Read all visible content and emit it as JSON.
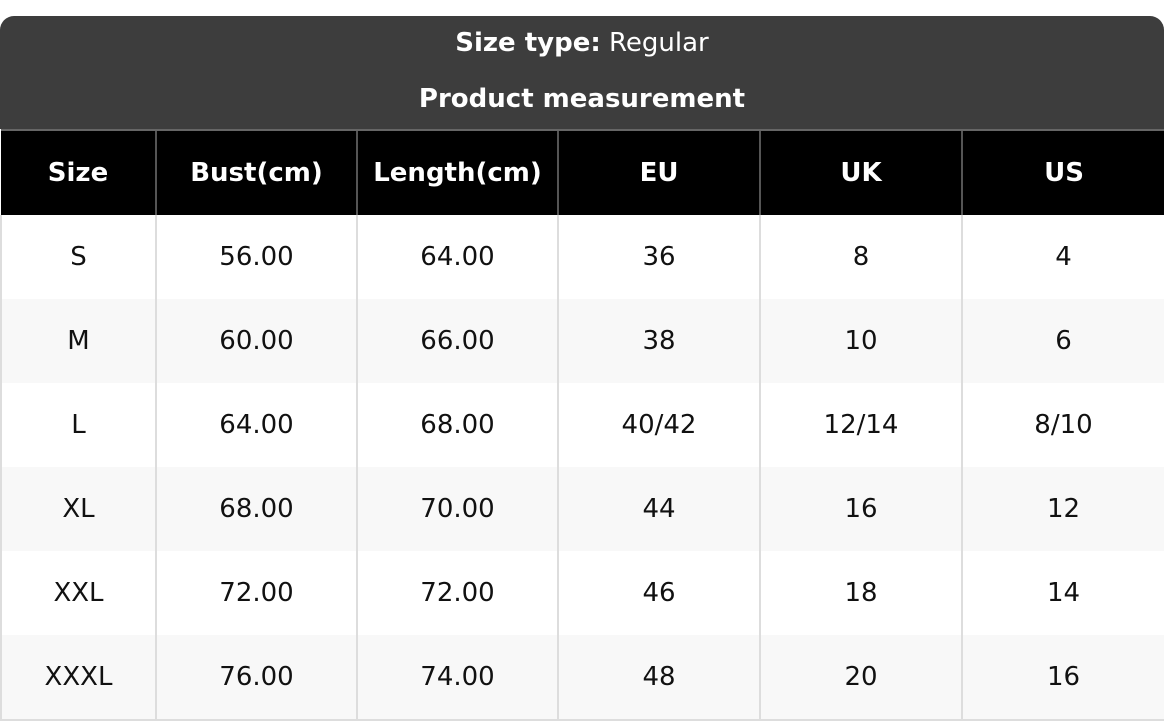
{
  "title": {
    "size_type_label": "Size type:",
    "size_type_value": "Regular",
    "subtitle": "Product measurement"
  },
  "columns": [
    "Size",
    "Bust(cm)",
    "Length(cm)",
    "EU",
    "UK",
    "US"
  ],
  "rows": [
    [
      "S",
      "56.00",
      "64.00",
      "36",
      "8",
      "4"
    ],
    [
      "M",
      "60.00",
      "66.00",
      "38",
      "10",
      "6"
    ],
    [
      "L",
      "64.00",
      "68.00",
      "40/42",
      "12/14",
      "8/10"
    ],
    [
      "XL",
      "68.00",
      "70.00",
      "44",
      "16",
      "12"
    ],
    [
      "XXL",
      "72.00",
      "72.00",
      "46",
      "18",
      "14"
    ],
    [
      "XXXL",
      "76.00",
      "74.00",
      "48",
      "20",
      "16"
    ]
  ]
}
